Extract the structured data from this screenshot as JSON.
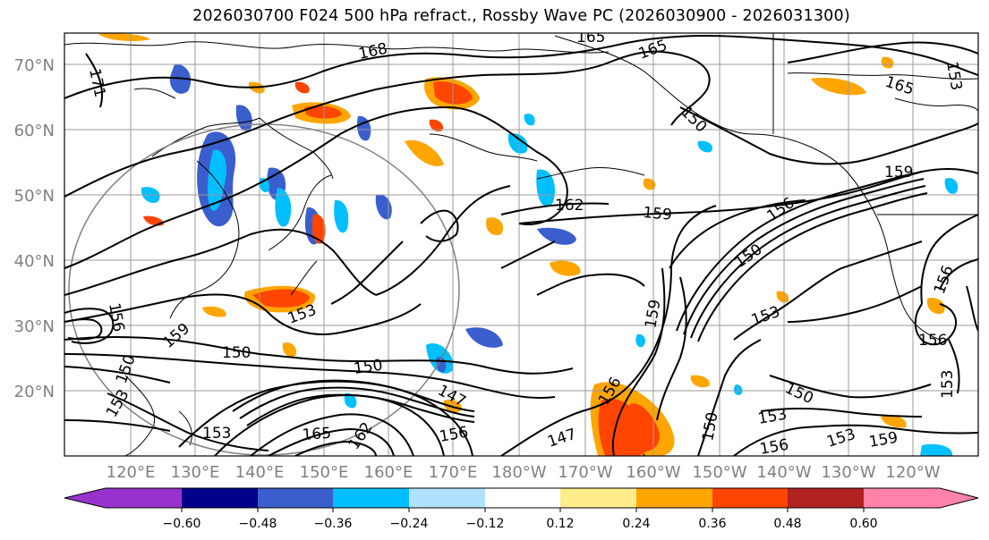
{
  "title": "2026030700 F024 500 hPa refract., Rossby Wave PC (2026030900 - 2026031300)",
  "map": {
    "lat_labels": [
      "70°N",
      "60°N",
      "50°N",
      "40°N",
      "30°N",
      "20°N"
    ],
    "lon_labels": [
      "120°E",
      "130°E",
      "140°E",
      "150°E",
      "160°E",
      "170°E",
      "180°W",
      "170°W",
      "160°W",
      "150°W",
      "140°W",
      "130°W",
      "120°W"
    ],
    "contour_labels": [
      "168",
      "165",
      "165",
      "165",
      "171",
      "162",
      "159",
      "159",
      "156",
      "150",
      "153",
      "150",
      "150",
      "147",
      "153",
      "153",
      "156",
      "159",
      "165",
      "162",
      "156",
      "147",
      "150",
      "150",
      "153",
      "150",
      "153",
      "156",
      "153",
      "159",
      "153",
      "156",
      "156",
      "159",
      "156",
      "150",
      "153",
      "150"
    ],
    "colors": {
      "ocean_land": "#ffffff",
      "contour": "#000000",
      "grid": "#808080",
      "coast": "#000000"
    }
  },
  "colorbar": {
    "tick_labels": [
      "−0.60",
      "−0.48",
      "−0.36",
      "−0.24",
      "−0.12",
      "0.12",
      "0.24",
      "0.36",
      "0.48",
      "0.60"
    ],
    "colors": [
      "#9932cc",
      "#00008b",
      "#3a5fcd",
      "#00bfff",
      "#b0e2ff",
      "#ffffff",
      "#ffec8b",
      "#ffa500",
      "#ff4500",
      "#b22222",
      "#ff82ab",
      "#ff82ab"
    ]
  }
}
